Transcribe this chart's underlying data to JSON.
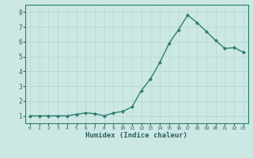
{
  "x": [
    0,
    1,
    2,
    3,
    4,
    5,
    6,
    7,
    8,
    9,
    10,
    11,
    12,
    13,
    14,
    15,
    16,
    17,
    18,
    19,
    20,
    21,
    22,
    23
  ],
  "y": [
    1.0,
    1.0,
    1.0,
    1.0,
    1.0,
    1.1,
    1.2,
    1.15,
    1.0,
    1.2,
    1.3,
    1.6,
    2.7,
    3.5,
    4.6,
    5.9,
    6.8,
    7.8,
    7.3,
    6.7,
    6.1,
    5.55,
    5.6,
    5.3
  ],
  "xlabel": "Humidex (Indice chaleur)",
  "ylabel": "",
  "xlim": [
    -0.5,
    23.5
  ],
  "ylim": [
    0.5,
    8.5
  ],
  "yticks": [
    1,
    2,
    3,
    4,
    5,
    6,
    7,
    8
  ],
  "xticks": [
    0,
    1,
    2,
    3,
    4,
    5,
    6,
    7,
    8,
    9,
    10,
    11,
    12,
    13,
    14,
    15,
    16,
    17,
    18,
    19,
    20,
    21,
    22,
    23
  ],
  "line_color": "#2d7d6e",
  "marker_color": "#2d7d6e",
  "bg_color": "#cce8e4",
  "grid_color": "#b8d8d4",
  "plot_bg": "#cce8e4",
  "spine_color": "#2d7d6e",
  "xlabel_color": "#2d6060",
  "tick_color": "#2d6060"
}
